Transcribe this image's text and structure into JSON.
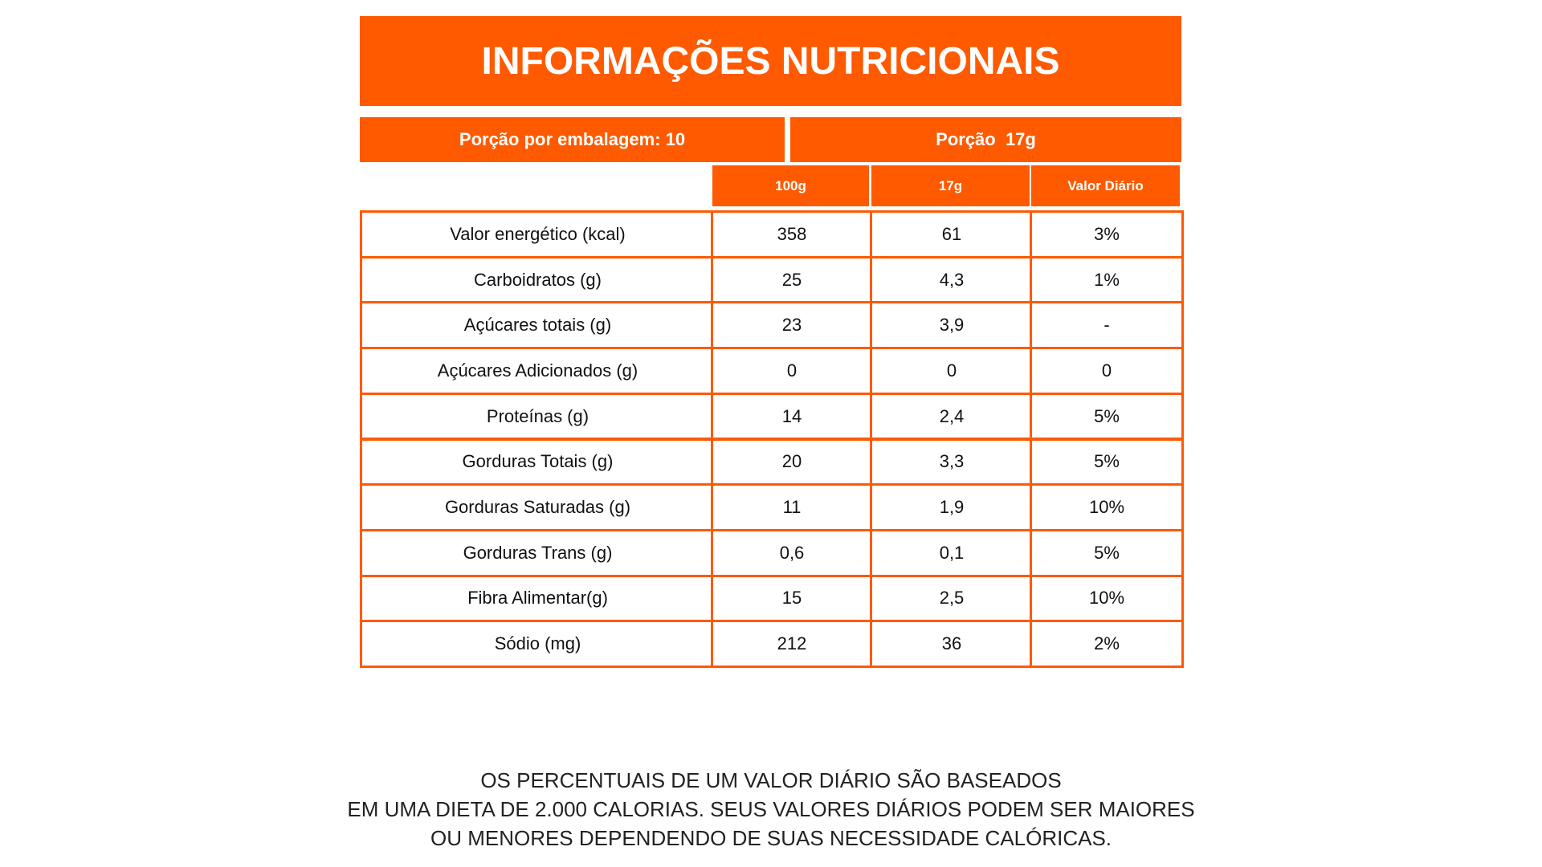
{
  "header": {
    "title": "INFORMAÇÕES NUTRICIONAIS"
  },
  "serving": {
    "per_package": "Porção por embalagem: 10",
    "portion": "Porção  17g"
  },
  "table": {
    "columns": [
      "100g",
      "17g",
      "Valor Diário"
    ],
    "rows": [
      [
        "Valor energético (kcal)",
        "358",
        "61",
        "3%"
      ],
      [
        "Carboidratos (g)",
        "25",
        "4,3",
        "1%"
      ],
      [
        "Açúcares totais (g)",
        "23",
        "3,9",
        "-"
      ],
      [
        "Açúcares Adicionados (g)",
        "0",
        "0",
        "0"
      ],
      [
        "Proteínas (g)",
        "14",
        "2,4",
        "5%"
      ],
      [
        "Gorduras Totais (g)",
        "20",
        "3,3",
        "5%"
      ],
      [
        "Gorduras Saturadas (g)",
        "11",
        "1,9",
        "10%"
      ],
      [
        "Gorduras Trans (g)",
        "0,6",
        "0,1",
        "5%"
      ],
      [
        "Fibra Alimentar(g)",
        "15",
        "2,5",
        "10%"
      ],
      [
        "Sódio (mg)",
        "212",
        "36",
        "2%"
      ]
    ]
  },
  "footer": {
    "lines": [
      "OS PERCENTUAIS DE UM VALOR DIÁRIO SÃO BASEADOS",
      "EM UMA DIETA DE 2.000 CALORIAS. SEUS VALORES DIÁRIOS PODEM SER MAIORES",
      "OU MENORES DEPENDENDO DE SUAS NECESSIDADE CALÓRICAS."
    ]
  }
}
